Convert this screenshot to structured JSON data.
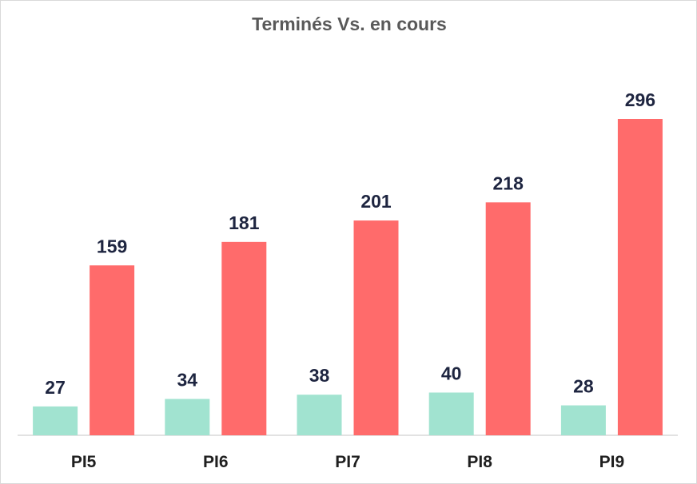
{
  "chart_data": {
    "type": "bar",
    "title": "Terminés Vs. en cours",
    "categories": [
      "PI5",
      "PI6",
      "PI7",
      "PI8",
      "PI9"
    ],
    "series": [
      {
        "values": [
          27,
          34,
          38,
          40,
          28
        ],
        "color": "#a1e3d0"
      },
      {
        "values": [
          159,
          181,
          201,
          218,
          296
        ],
        "color": "#ff6b6b"
      }
    ],
    "ylim": [
      0,
      320
    ],
    "grid": false,
    "label_color": "#1e2540",
    "axis_color": "#d9d9d9"
  }
}
